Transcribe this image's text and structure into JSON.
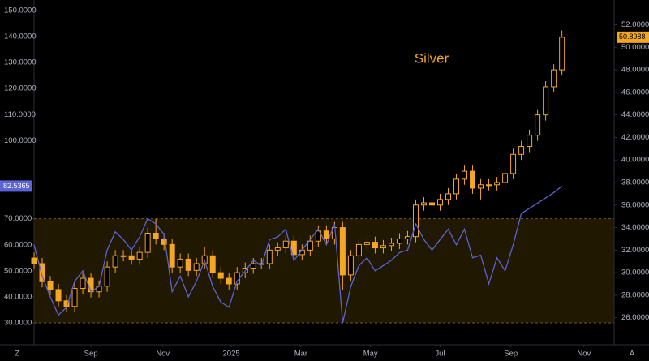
{
  "chart_data": {
    "type": "candlestick",
    "x": [
      0,
      7,
      14,
      21,
      28,
      35,
      42,
      49,
      56,
      63,
      70,
      77,
      84,
      91,
      98,
      105,
      112,
      119,
      126,
      133,
      140,
      147,
      154,
      161,
      168,
      175,
      182,
      189,
      196,
      203,
      210,
      217,
      224,
      231,
      238,
      245,
      252,
      259,
      266,
      273,
      280,
      287,
      294,
      301,
      308,
      315,
      322,
      329,
      336,
      343,
      350,
      357,
      364,
      371,
      378,
      385,
      392,
      399,
      406,
      413,
      420,
      427,
      434,
      441,
      448,
      455
    ],
    "xlim": [
      0,
      500
    ],
    "xticks": [
      {
        "value": 49,
        "label": "Sep"
      },
      {
        "value": 111,
        "label": "Nov"
      },
      {
        "value": 170,
        "label": "2025"
      },
      {
        "value": 230,
        "label": "Mar"
      },
      {
        "value": 290,
        "label": "May"
      },
      {
        "value": 350,
        "label": "Jul"
      },
      {
        "value": 411,
        "label": "Sep"
      },
      {
        "value": 474,
        "label": "Nov"
      }
    ],
    "ylim": [
      21.6,
      154
    ],
    "yticks": [
      {
        "value": 150,
        "label": "150.0000"
      },
      {
        "value": 140,
        "label": "140.0000"
      },
      {
        "value": 130,
        "label": "130.0000"
      },
      {
        "value": 120,
        "label": "120.0000"
      },
      {
        "value": 110,
        "label": "110.0000"
      },
      {
        "value": 100,
        "label": "100.0000"
      },
      {
        "value": 70,
        "label": "70.0000"
      },
      {
        "value": 60,
        "label": "60.0000"
      },
      {
        "value": 50,
        "label": "50.0000"
      },
      {
        "value": 40,
        "label": "40.0000"
      },
      {
        "value": 30,
        "label": "30.0000"
      }
    ],
    "y2lim": [
      23.6,
      54.2
    ],
    "y2ticks": [
      {
        "value": 52,
        "label": "52.0000"
      },
      {
        "value": 50,
        "label": "50.0000"
      },
      {
        "value": 48,
        "label": "48.0000"
      },
      {
        "value": 46,
        "label": "46.0000"
      },
      {
        "value": 44,
        "label": "44.0000"
      },
      {
        "value": 42,
        "label": "42.0000"
      },
      {
        "value": 40,
        "label": "40.0000"
      },
      {
        "value": 38,
        "label": "38.0000"
      },
      {
        "value": 36,
        "label": "36.0000"
      },
      {
        "value": 34,
        "label": "34.0000"
      },
      {
        "value": 32,
        "label": "32.0000"
      },
      {
        "value": 30,
        "label": "30.0000"
      },
      {
        "value": 28,
        "label": "28.0000"
      },
      {
        "value": 26,
        "label": "26.0000"
      }
    ],
    "band": [
      30,
      70
    ],
    "band_color": "#3a2c00",
    "grid": false,
    "buttons": [
      "Z",
      "A"
    ],
    "series": [
      {
        "name": "Silver",
        "color": "#f5a623",
        "axis": "y2",
        "open": [
          31.3,
          30.8,
          29.2,
          28.5,
          27.5,
          27.0,
          28.6,
          29.5,
          28.3,
          28.8,
          30.5,
          31.5,
          31.5,
          31.2,
          31.8,
          33.5,
          33.0,
          32.5,
          30.5,
          31.2,
          30.2,
          30.8,
          31.5,
          30.0,
          29.5,
          29.0,
          30.0,
          30.4,
          30.8,
          30.8,
          32.0,
          32.2,
          32.8,
          31.6,
          32.0,
          32.8,
          33.7,
          33.0,
          34.0,
          29.8,
          31.5,
          32.5,
          32.7,
          32.2,
          32.4,
          32.6,
          33.0,
          33.2,
          36.0,
          36.2,
          36.0,
          36.5,
          37.0,
          38.3,
          39.0,
          37.5,
          37.8,
          37.8,
          38.0,
          38.8,
          40.5,
          41.2,
          42.2,
          44.0,
          46.5,
          48.0
        ],
        "high": [
          31.8,
          31.3,
          29.7,
          29.0,
          28.0,
          29.1,
          30.0,
          30.0,
          29.3,
          31.0,
          32.0,
          32.0,
          32.0,
          32.3,
          34.0,
          34.8,
          33.5,
          33.0,
          31.7,
          31.7,
          31.3,
          32.3,
          32.0,
          30.5,
          30.0,
          30.5,
          30.9,
          31.3,
          31.3,
          32.5,
          32.7,
          33.3,
          33.3,
          32.5,
          33.3,
          34.2,
          34.2,
          34.5,
          34.5,
          32.0,
          33.0,
          33.2,
          33.2,
          32.9,
          33.1,
          33.5,
          33.7,
          36.5,
          36.7,
          36.7,
          37.0,
          37.5,
          38.8,
          39.5,
          39.5,
          38.3,
          38.3,
          38.5,
          39.3,
          41.0,
          41.7,
          42.7,
          44.5,
          47.0,
          48.5,
          51.5
        ],
        "low": [
          30.3,
          28.7,
          28.0,
          27.0,
          26.5,
          26.5,
          28.1,
          27.8,
          27.8,
          28.3,
          30.0,
          31.0,
          30.7,
          30.7,
          31.3,
          32.5,
          32.0,
          30.0,
          30.0,
          29.7,
          29.7,
          30.3,
          29.5,
          29.0,
          28.5,
          28.5,
          29.5,
          29.9,
          30.3,
          30.3,
          31.5,
          31.7,
          31.1,
          31.1,
          31.5,
          32.3,
          32.5,
          32.5,
          28.5,
          29.3,
          31.0,
          32.0,
          31.7,
          31.7,
          31.9,
          32.1,
          32.5,
          32.7,
          35.5,
          35.5,
          35.5,
          36.0,
          36.5,
          37.8,
          37.0,
          36.5,
          37.3,
          37.3,
          37.5,
          38.3,
          40.0,
          40.7,
          41.7,
          43.5,
          46.0,
          47.5
        ],
        "close": [
          30.8,
          29.2,
          28.5,
          27.5,
          27.0,
          28.6,
          29.5,
          28.3,
          28.8,
          30.5,
          31.5,
          31.5,
          31.2,
          31.8,
          33.5,
          33.0,
          32.5,
          30.5,
          31.2,
          30.2,
          30.8,
          31.5,
          30.0,
          29.5,
          29.0,
          30.0,
          30.4,
          30.8,
          30.8,
          32.0,
          32.2,
          32.8,
          31.6,
          32.0,
          32.8,
          33.7,
          33.0,
          34.0,
          29.8,
          31.5,
          32.5,
          32.7,
          32.2,
          32.4,
          32.6,
          33.0,
          33.2,
          36.0,
          36.2,
          36.0,
          36.5,
          37.0,
          38.3,
          39.0,
          37.5,
          37.8,
          37.8,
          38.0,
          38.8,
          40.5,
          41.2,
          42.2,
          44.0,
          46.5,
          48.0,
          50.8988
        ]
      },
      {
        "color": "#5b63d6",
        "values": [
          60,
          48,
          40,
          33,
          36,
          46,
          50,
          42,
          44,
          58,
          65,
          62,
          58,
          63,
          70,
          68,
          64,
          42,
          48,
          40,
          46,
          54,
          44,
          38,
          36,
          46,
          50,
          54,
          52,
          62,
          63,
          66,
          54,
          58,
          62,
          66,
          60,
          68,
          30,
          44,
          52,
          55,
          50,
          52,
          54,
          57,
          58,
          68,
          62,
          58,
          62,
          66,
          60,
          66,
          55,
          56,
          45,
          55,
          50,
          60,
          72,
          74,
          76,
          78,
          80,
          82.5365
        ]
      }
    ]
  }
}
